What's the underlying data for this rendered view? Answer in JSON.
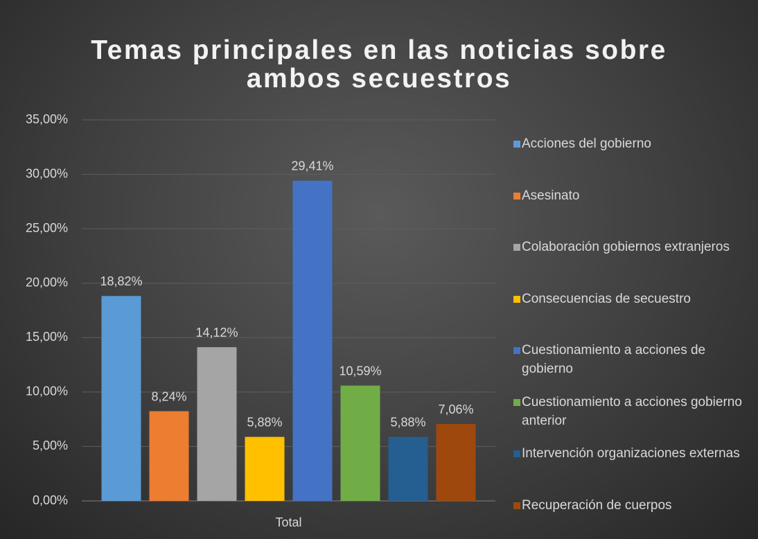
{
  "chart_data": {
    "type": "bar",
    "title": "Temas principales en las noticias sobre ambos secuestros",
    "categories": [
      "Total"
    ],
    "series": [
      {
        "name": "Acciones del gobierno",
        "color": "#5b9bd5",
        "values": [
          18.82
        ],
        "value_labels": [
          "18,82%"
        ]
      },
      {
        "name": "Asesinato",
        "color": "#ed7d31",
        "values": [
          8.24
        ],
        "value_labels": [
          "8,24%"
        ]
      },
      {
        "name": "Colaboración gobiernos extranjeros",
        "color": "#a5a5a5",
        "values": [
          14.12
        ],
        "value_labels": [
          "14,12%"
        ]
      },
      {
        "name": "Consecuencias de secuestro",
        "color": "#ffc000",
        "values": [
          5.88
        ],
        "value_labels": [
          "5,88%"
        ]
      },
      {
        "name": "Cuestionamiento a acciones de gobierno",
        "color": "#4472c4",
        "values": [
          29.41
        ],
        "value_labels": [
          "29,41%"
        ]
      },
      {
        "name": "Cuestionamiento a acciones gobierno anterior",
        "color": "#70ad47",
        "values": [
          10.59
        ],
        "value_labels": [
          "10,59%"
        ]
      },
      {
        "name": "Intervención organizaciones externas",
        "color": "#255e91",
        "values": [
          5.88
        ],
        "value_labels": [
          "5,88%"
        ]
      },
      {
        "name": "Recuperación de cuerpos",
        "color": "#9e480e",
        "values": [
          7.06
        ],
        "value_labels": [
          "7,06%"
        ]
      }
    ],
    "ylim": [
      0,
      35
    ],
    "yticks": [
      {
        "value": 0,
        "label": "0,00%"
      },
      {
        "value": 5,
        "label": "5,00%"
      },
      {
        "value": 10,
        "label": "10,00%"
      },
      {
        "value": 15,
        "label": "15,00%"
      },
      {
        "value": 20,
        "label": "20,00%"
      },
      {
        "value": 25,
        "label": "25,00%"
      },
      {
        "value": 30,
        "label": "30,00%"
      },
      {
        "value": 35,
        "label": "35,00%"
      }
    ],
    "grid": true,
    "legend": "right"
  }
}
